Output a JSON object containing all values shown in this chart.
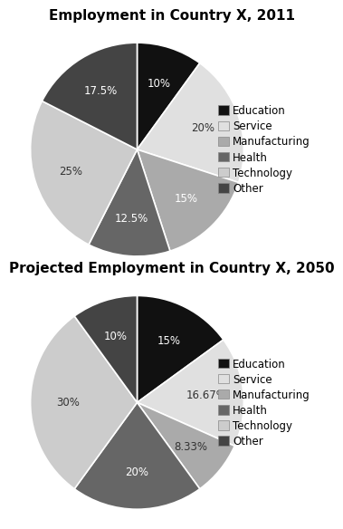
{
  "chart1": {
    "title": "Employment in Country X, 2011",
    "labels": [
      "Education",
      "Service",
      "Manufacturing",
      "Health",
      "Technology",
      "Other"
    ],
    "values": [
      10,
      20,
      15,
      12.5,
      25,
      17.5
    ],
    "colors": [
      "#111111",
      "#e0e0e0",
      "#aaaaaa",
      "#666666",
      "#cccccc",
      "#444444"
    ],
    "pct_labels": [
      "10%",
      "20%",
      "15%",
      "12.5%",
      "25%",
      "17.5%"
    ],
    "label_colors": [
      "white",
      "#333333",
      "white",
      "white",
      "#333333",
      "white"
    ],
    "startangle": 90
  },
  "chart2": {
    "title": "Projected Employment in Country X, 2050",
    "labels": [
      "Education",
      "Service",
      "Manufacturing",
      "Health",
      "Technology",
      "Other"
    ],
    "values": [
      15,
      16.67,
      8.33,
      20,
      30,
      10
    ],
    "colors": [
      "#111111",
      "#e0e0e0",
      "#aaaaaa",
      "#666666",
      "#cccccc",
      "#444444"
    ],
    "pct_labels": [
      "15%",
      "16.67%",
      "8.33%",
      "20%",
      "30%",
      "10%"
    ],
    "label_colors": [
      "white",
      "#333333",
      "#333333",
      "white",
      "#333333",
      "white"
    ],
    "startangle": 90
  },
  "legend_labels": [
    "Education",
    "Service",
    "Manufacturing",
    "Health",
    "Technology",
    "Other"
  ],
  "legend_colors": [
    "#111111",
    "#e0e0e0",
    "#aaaaaa",
    "#666666",
    "#cccccc",
    "#444444"
  ],
  "background_color": "#ffffff",
  "text_color": "#000000",
  "title_fontsize": 11,
  "label_fontsize": 8.5,
  "legend_fontsize": 8.5
}
